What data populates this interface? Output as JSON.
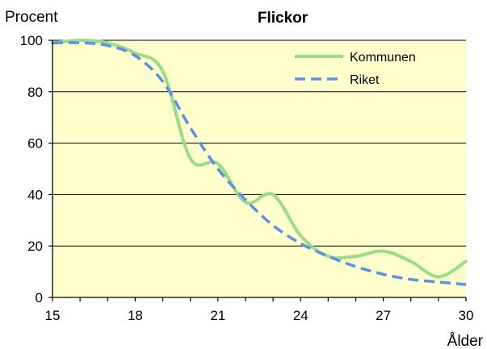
{
  "chart_data": {
    "type": "line",
    "title": "Flickor",
    "ylabel": "Procent",
    "xlabel": "Ålder",
    "xlim": [
      15,
      30
    ],
    "ylim": [
      0,
      100
    ],
    "x_ticks": [
      15,
      18,
      21,
      24,
      27,
      30
    ],
    "y_ticks": [
      0,
      20,
      40,
      60,
      80,
      100
    ],
    "grid": true,
    "legend_position": "top-right",
    "plot_background": "#ffffcc",
    "series": [
      {
        "name": "Kommunen",
        "color": "#99dd88",
        "style": "solid",
        "x": [
          15,
          16,
          17,
          18,
          19,
          20,
          21,
          22,
          23,
          24,
          25,
          26,
          27,
          28,
          29,
          30
        ],
        "y": [
          99,
          100,
          99,
          95,
          88,
          54,
          52,
          37,
          40,
          24,
          16,
          16,
          18,
          14,
          8,
          14
        ]
      },
      {
        "name": "Riket",
        "color": "#5b8fe8",
        "style": "dashed",
        "x": [
          15,
          16,
          17,
          18,
          19,
          20,
          21,
          22,
          23,
          24,
          25,
          26,
          27,
          28,
          29,
          30
        ],
        "y": [
          99,
          99,
          98,
          94,
          84,
          66,
          50,
          38,
          28,
          21,
          16,
          12,
          9,
          7,
          6,
          5
        ]
      }
    ]
  }
}
